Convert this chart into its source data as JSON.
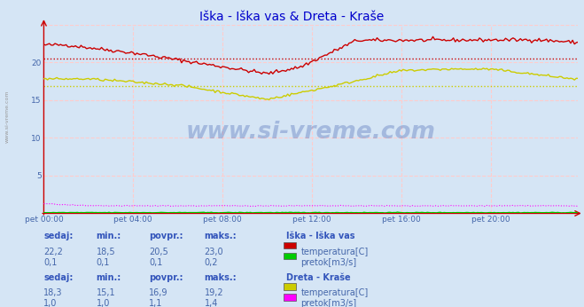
{
  "title": "Iška - Iška vas & Dreta - Kraše",
  "title_color": "#0000cc",
  "bg_color": "#d5e5f5",
  "plot_bg_color": "#d5e5f5",
  "xlim": [
    0,
    287
  ],
  "ylim": [
    0,
    25
  ],
  "yticks": [
    5,
    10,
    15,
    20
  ],
  "xtick_labels": [
    "pet 00:00",
    "pet 04:00",
    "pet 08:00",
    "pet 12:00",
    "pet 16:00",
    "pet 20:00"
  ],
  "xtick_positions": [
    0,
    48,
    96,
    144,
    192,
    240
  ],
  "avg_red": 20.5,
  "avg_yellow": 16.9,
  "watermark": "www.si-vreme.com",
  "legend_title1": "Iška - Iška vas",
  "legend_title2": "Dreta - Kraše",
  "label_color": "#4466aa",
  "header_color": "#3355bb",
  "table_header": [
    "sedaj:",
    "min.:",
    "povpr.:",
    "maks.:"
  ],
  "row1": [
    "22,2",
    "18,5",
    "20,5",
    "23,0"
  ],
  "row2": [
    "0,1",
    "0,1",
    "0,1",
    "0,2"
  ],
  "row3": [
    "18,3",
    "15,1",
    "16,9",
    "19,2"
  ],
  "row4": [
    "1,0",
    "1,0",
    "1,1",
    "1,4"
  ],
  "color_red": "#cc0000",
  "color_green": "#00cc00",
  "color_yellow": "#cccc00",
  "color_magenta": "#ff00ff",
  "grid_line_color": "#ffcccc",
  "side_label": "www.si-vreme.com"
}
